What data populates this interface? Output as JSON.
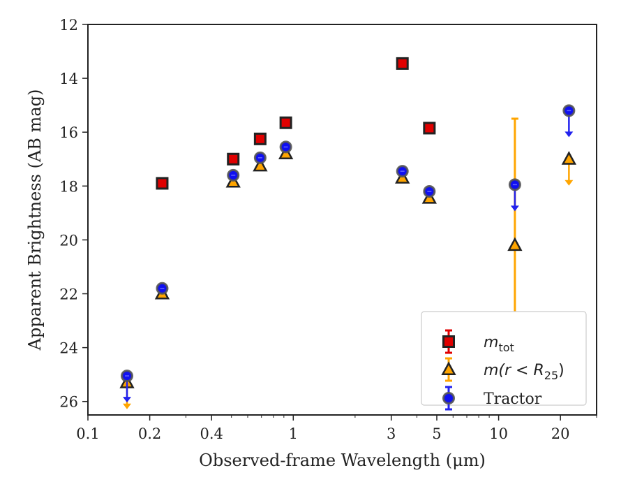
{
  "chart_data": {
    "type": "scatter",
    "xscale": "log",
    "xlim": [
      0.1,
      30
    ],
    "ylim": [
      26.5,
      12
    ],
    "y_inverted": true,
    "xlabel": "Observed-frame Wavelength (μm)",
    "ylabel": "Apparent Brightness (AB mag)",
    "xticks": [
      {
        "value": 0.1,
        "label": "0.1"
      },
      {
        "value": 0.2,
        "label": "0.2"
      },
      {
        "value": 0.4,
        "label": "0.4"
      },
      {
        "value": 1,
        "label": "1"
      },
      {
        "value": 3,
        "label": "3"
      },
      {
        "value": 5,
        "label": "5"
      },
      {
        "value": 10,
        "label": "10"
      },
      {
        "value": 20,
        "label": "20"
      }
    ],
    "yticks": [
      {
        "value": 12,
        "label": "12"
      },
      {
        "value": 14,
        "label": "14"
      },
      {
        "value": 16,
        "label": "16"
      },
      {
        "value": 18,
        "label": "18"
      },
      {
        "value": 20,
        "label": "20"
      },
      {
        "value": 22,
        "label": "22"
      },
      {
        "value": 24,
        "label": "24"
      },
      {
        "value": 26,
        "label": "26"
      }
    ],
    "legend_position": "lower-right",
    "series": [
      {
        "name": "m_tot",
        "label_base": "m",
        "label_sub": "tot",
        "marker": "square",
        "color": "#e00000",
        "edge": "#222222",
        "errcolor": "#e00000",
        "points": [
          {
            "x": 0.23,
            "y": 17.9
          },
          {
            "x": 0.51,
            "y": 17.0
          },
          {
            "x": 0.69,
            "y": 16.25
          },
          {
            "x": 0.92,
            "y": 15.65
          },
          {
            "x": 3.4,
            "y": 13.45
          },
          {
            "x": 4.6,
            "y": 15.85
          }
        ]
      },
      {
        "name": "m(r < R25)",
        "label_base": "m(r < R",
        "label_sub": "25",
        "label_end": ")",
        "marker": "triangle",
        "color": "#ffa500",
        "edge": "#222222",
        "errcolor": "#ffa500",
        "points": [
          {
            "x": 0.155,
            "y": 25.3,
            "upper_limit": true
          },
          {
            "x": 0.23,
            "y": 22.0
          },
          {
            "x": 0.51,
            "y": 17.85
          },
          {
            "x": 0.69,
            "y": 17.25
          },
          {
            "x": 0.92,
            "y": 16.8
          },
          {
            "x": 3.4,
            "y": 17.7
          },
          {
            "x": 4.6,
            "y": 18.45
          },
          {
            "x": 12,
            "y": 20.2,
            "err_low": 15.5,
            "err_high": 24.9
          },
          {
            "x": 22,
            "y": 17.0,
            "upper_limit": true
          }
        ]
      },
      {
        "name": "Tractor",
        "marker": "circle",
        "color": "#1010f0",
        "edge": "#555555",
        "errcolor": "#2222ee",
        "points": [
          {
            "x": 0.155,
            "y": 25.05,
            "upper_limit": true
          },
          {
            "x": 0.23,
            "y": 21.8
          },
          {
            "x": 0.51,
            "y": 17.6
          },
          {
            "x": 0.69,
            "y": 16.95
          },
          {
            "x": 0.92,
            "y": 16.55
          },
          {
            "x": 3.4,
            "y": 17.45
          },
          {
            "x": 4.6,
            "y": 18.2
          },
          {
            "x": 12,
            "y": 17.95,
            "upper_limit": true
          },
          {
            "x": 22,
            "y": 15.2,
            "upper_limit": true
          }
        ]
      }
    ]
  }
}
